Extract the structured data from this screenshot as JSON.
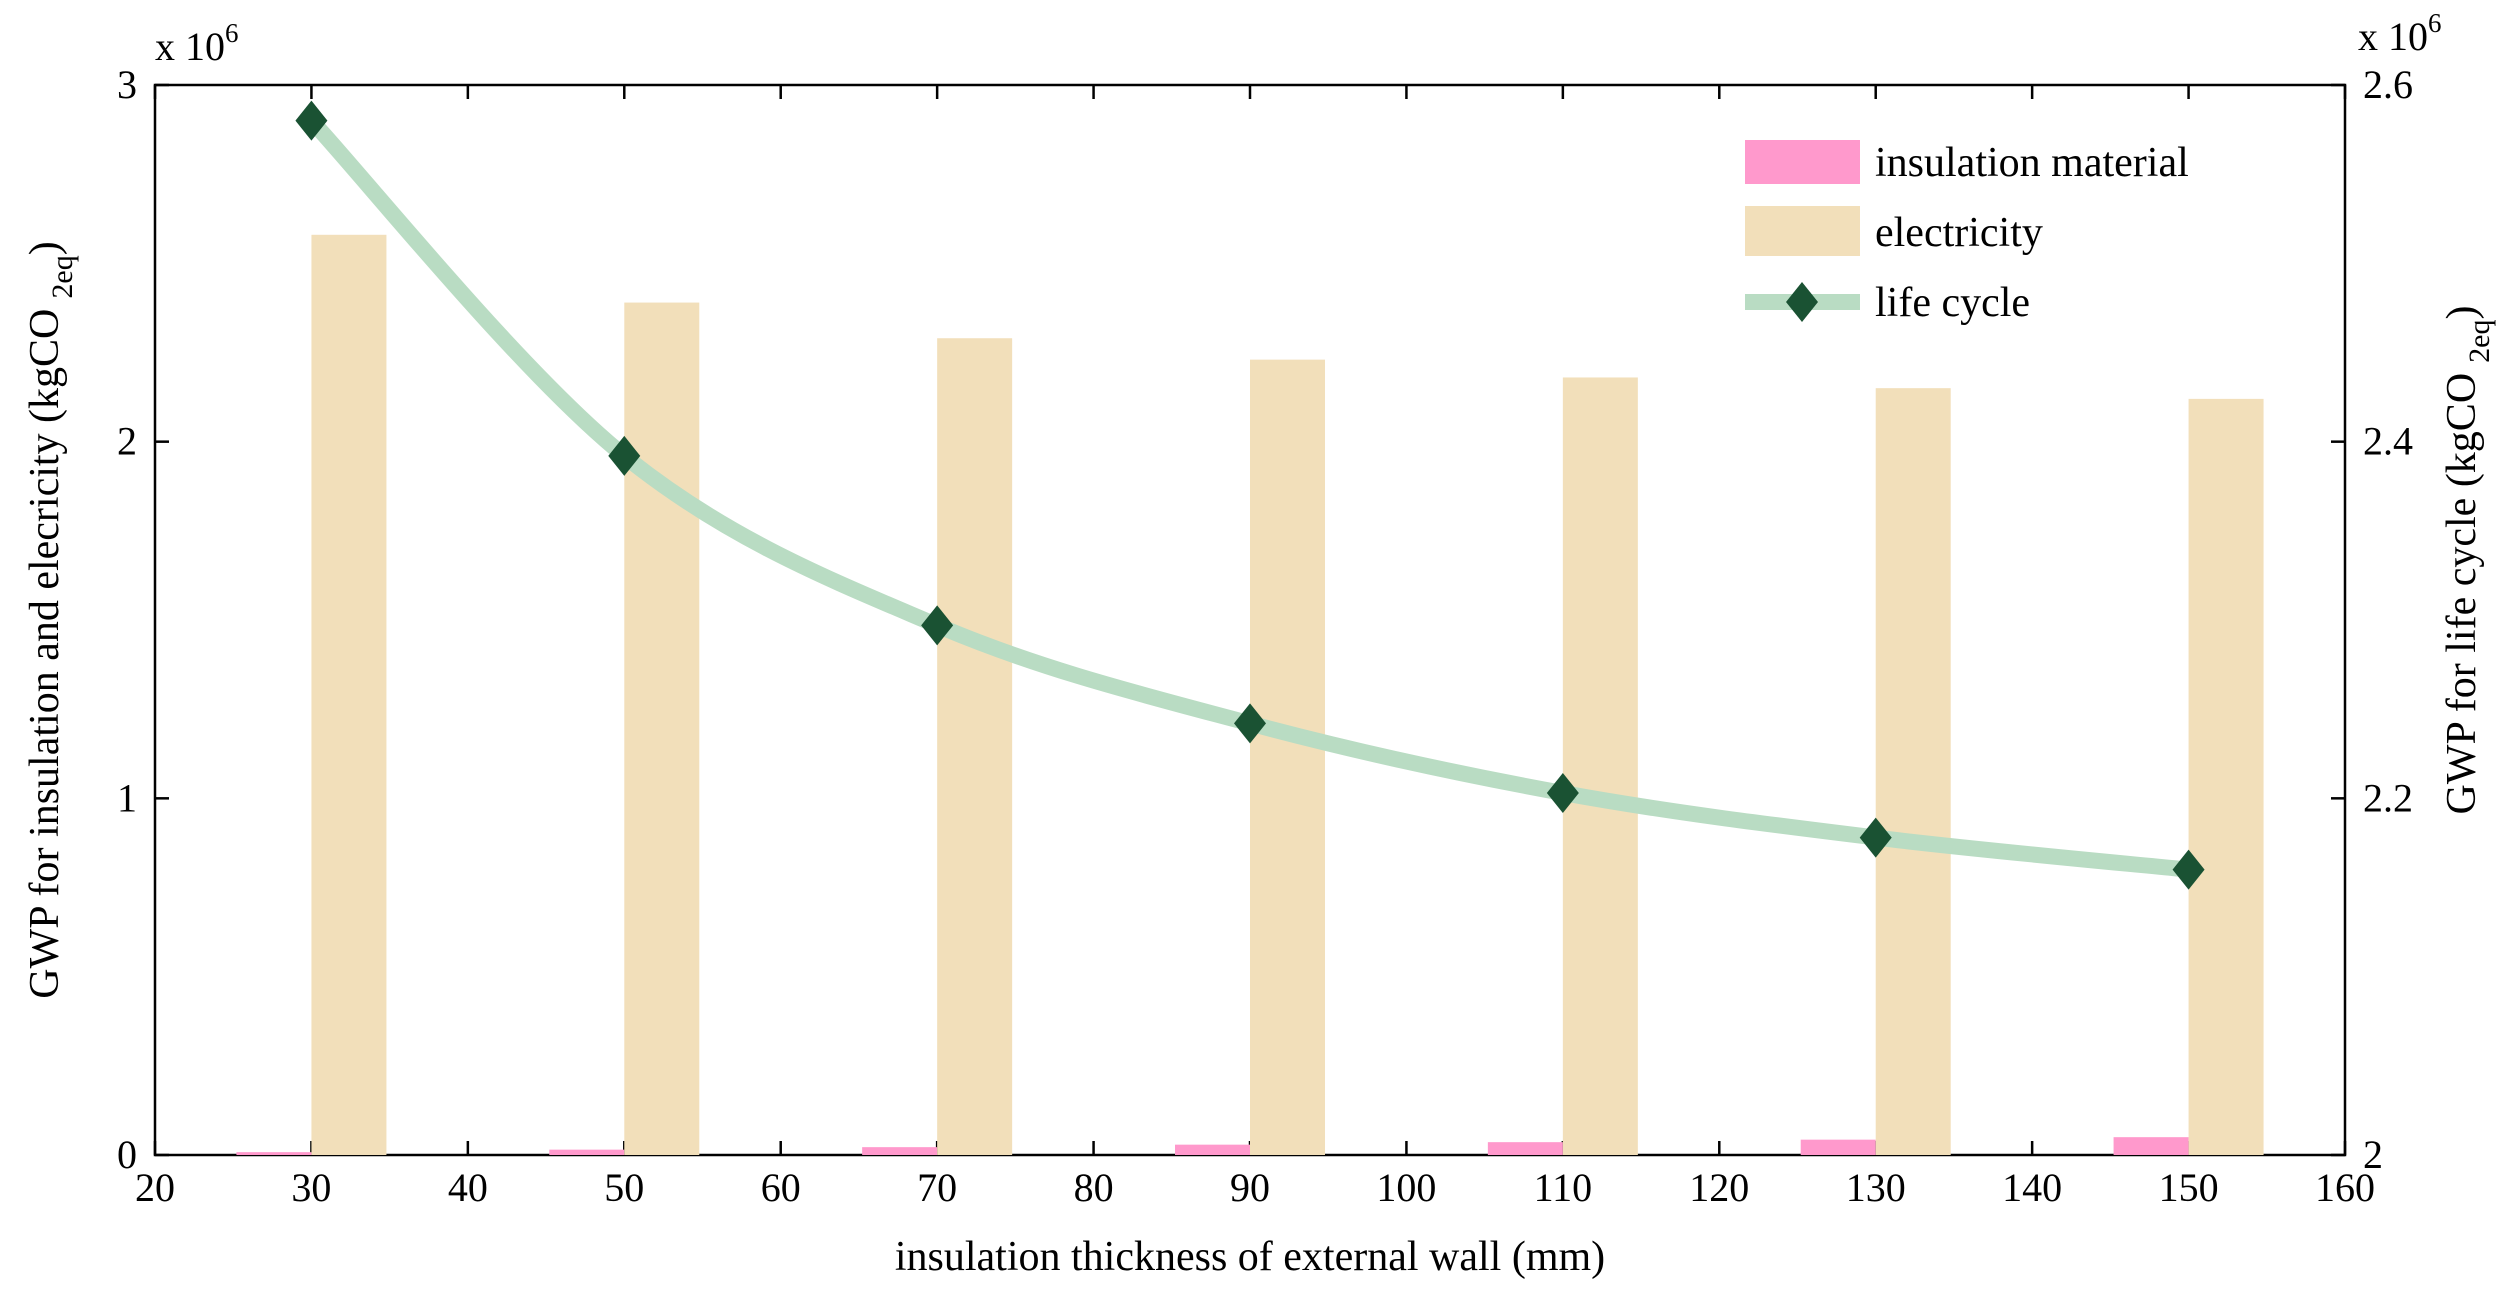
{
  "chart_data": {
    "type": "bar+line",
    "xlabel": "insulation thickness of external wall (mm)",
    "ylabel_left": "GWP for insulation and elecricity (kgCO",
    "ylabel_right": "GWP for life cycle (kgCO",
    "ylabel_sub": "2eq",
    "ylabel_close": ")",
    "left_exponent_label": "x 10",
    "right_exponent_label": "x 10",
    "exponent": "6",
    "xlim": [
      20,
      160
    ],
    "xticks": [
      "20",
      "30",
      "40",
      "50",
      "60",
      "70",
      "80",
      "90",
      "100",
      "110",
      "120",
      "130",
      "140",
      "150",
      "160"
    ],
    "xtick_values": [
      20,
      30,
      40,
      50,
      60,
      70,
      80,
      90,
      100,
      110,
      120,
      130,
      140,
      150,
      160
    ],
    "ylim_left": [
      0,
      3
    ],
    "yticks_left": [
      "0",
      "1",
      "2",
      "3"
    ],
    "ytick_values_left": [
      0,
      1,
      2,
      3
    ],
    "ylim_right": [
      2.0,
      2.6
    ],
    "yticks_right": [
      "2",
      "2.2",
      "2.4",
      "2.6"
    ],
    "ytick_values_right": [
      2.0,
      2.2,
      2.4,
      2.6
    ],
    "categories": [
      30,
      50,
      70,
      90,
      110,
      130,
      150
    ],
    "series": [
      {
        "name": "insulation material",
        "kind": "bar",
        "axis": "left",
        "color": "#ff99cc",
        "values": [
          0.008,
          0.015,
          0.022,
          0.029,
          0.036,
          0.043,
          0.05
        ]
      },
      {
        "name": "electricity",
        "kind": "bar",
        "axis": "left",
        "color": "#f2dfba",
        "values": [
          2.58,
          2.39,
          2.29,
          2.23,
          2.18,
          2.15,
          2.12
        ]
      },
      {
        "name": "life cycle",
        "kind": "line",
        "axis": "right",
        "color": "#b9dcc3",
        "marker_color": "#1a5233",
        "values": [
          2.58,
          2.392,
          2.297,
          2.242,
          2.203,
          2.178,
          2.16
        ]
      }
    ],
    "legend": [
      {
        "label": "insulation material"
      },
      {
        "label": "electricity"
      },
      {
        "label": "life cycle"
      }
    ],
    "legend_position": "top-right"
  }
}
